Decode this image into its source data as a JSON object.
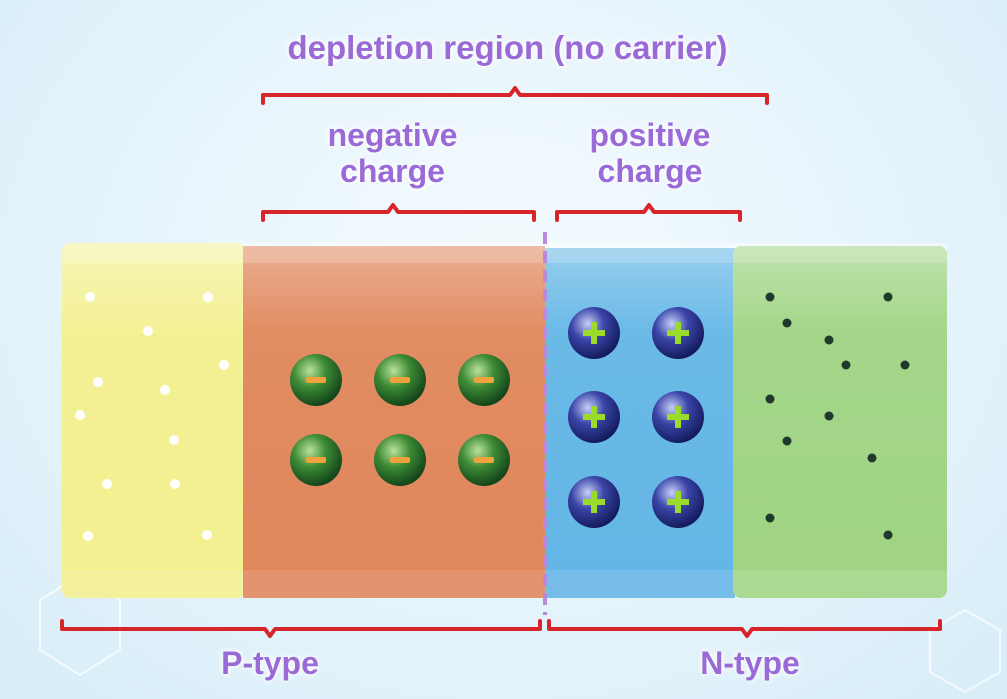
{
  "labels": {
    "depletion_region": "depletion region (no carrier)",
    "negative_line1": "negative",
    "negative_line2": "charge",
    "positive_line1": "positive",
    "positive_line2": "charge",
    "p_type": "P-type",
    "n_type": "N-type"
  },
  "regions": [
    {
      "name": "p-type-neutral",
      "color": "#f3ef8a"
    },
    {
      "name": "negative-charge-layer",
      "color": "#e0865a"
    },
    {
      "name": "positive-charge-layer",
      "color": "#63b6e6"
    },
    {
      "name": "n-type-neutral",
      "color": "#9fd483"
    }
  ],
  "ions": {
    "negative": {
      "count": 6,
      "sign": "−",
      "ball_color": "#2f7a2c",
      "sign_color": "#f0a23a"
    },
    "positive": {
      "count": 6,
      "sign": "+",
      "ball_color": "#2f3a96",
      "sign_color": "#9bdc2a"
    }
  },
  "carriers": {
    "holes": {
      "count": 12,
      "color": "#ffffff"
    },
    "electrons": {
      "count": 13,
      "color": "#1f3a2c"
    }
  },
  "colors": {
    "bracket": "#d7262b",
    "label": "#9a6ad6",
    "junction_line": "#b88ad9"
  }
}
